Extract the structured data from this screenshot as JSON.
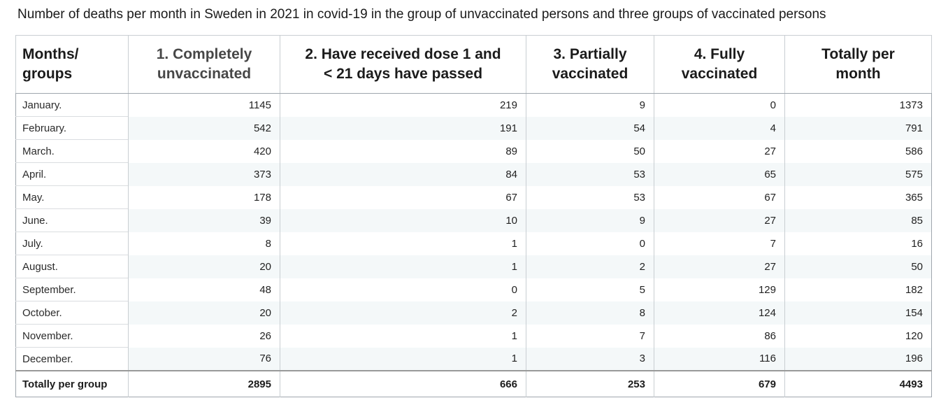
{
  "title": "Number of deaths per month in Sweden in 2021 in covid-19 in the group of unvaccinated persons and three groups of vaccinated persons",
  "colors": {
    "stripe": "#f4f8f9",
    "border_outer": "#9fa6ad",
    "border_inner": "#c9ced2",
    "border_row": "#dadde0",
    "border_totals": "#999999",
    "text": "#222222",
    "header_text": "#1b1b1b",
    "header_unvaccinated_text": "#474747"
  },
  "table": {
    "header": {
      "cols": [
        "Months/\ngroups",
        "1. Completely\nunvaccinated",
        "2. Have received dose 1 and\n< 21 days have passed",
        "3. Partially\nvaccinated",
        "4. Fully\nvaccinated",
        "Totally per\nmonth"
      ]
    },
    "rows": [
      {
        "label": "January.",
        "values": [
          "1145",
          "219",
          "9",
          "0",
          "1373"
        ]
      },
      {
        "label": "February.",
        "values": [
          "542",
          "191",
          "54",
          "4",
          "791"
        ]
      },
      {
        "label": "March.",
        "values": [
          "420",
          "89",
          "50",
          "27",
          "586"
        ]
      },
      {
        "label": "April.",
        "values": [
          "373",
          "84",
          "53",
          "65",
          "575"
        ]
      },
      {
        "label": "May.",
        "values": [
          "178",
          "67",
          "53",
          "67",
          "365"
        ]
      },
      {
        "label": "June.",
        "values": [
          "39",
          "10",
          "9",
          "27",
          "85"
        ]
      },
      {
        "label": "July.",
        "values": [
          "8",
          "1",
          "0",
          "7",
          "16"
        ]
      },
      {
        "label": "August.",
        "values": [
          "20",
          "1",
          "2",
          "27",
          "50"
        ]
      },
      {
        "label": "September.",
        "values": [
          "48",
          "0",
          "5",
          "129",
          "182"
        ]
      },
      {
        "label": "October.",
        "values": [
          "20",
          "2",
          "8",
          "124",
          "154"
        ]
      },
      {
        "label": "November.",
        "values": [
          "26",
          "1",
          "7",
          "86",
          "120"
        ]
      },
      {
        "label": "December.",
        "values": [
          "76",
          "1",
          "3",
          "116",
          "196"
        ]
      }
    ],
    "totals": {
      "label": "Totally per group",
      "values": [
        "2895",
        "666",
        "253",
        "679",
        "4493"
      ]
    }
  },
  "chart_data": {
    "type": "table",
    "title": "Number of deaths per month in Sweden in 2021 in covid-19 in the group of unvaccinated persons and three groups of vaccinated persons",
    "categories": [
      "January.",
      "February.",
      "March.",
      "April.",
      "May.",
      "June.",
      "July.",
      "August.",
      "September.",
      "October.",
      "November.",
      "December."
    ],
    "series": [
      {
        "name": "1. Completely unvaccinated",
        "values": [
          1145,
          542,
          420,
          373,
          178,
          39,
          8,
          20,
          48,
          20,
          26,
          76
        ],
        "total": 2895
      },
      {
        "name": "2. Have received dose 1 and < 21 days have passed",
        "values": [
          219,
          191,
          89,
          84,
          67,
          10,
          1,
          1,
          0,
          2,
          1,
          1
        ],
        "total": 666
      },
      {
        "name": "3. Partially vaccinated",
        "values": [
          9,
          54,
          50,
          53,
          53,
          9,
          0,
          2,
          5,
          8,
          7,
          3
        ],
        "total": 253
      },
      {
        "name": "4. Fully vaccinated",
        "values": [
          0,
          4,
          27,
          65,
          67,
          27,
          7,
          27,
          129,
          124,
          86,
          116
        ],
        "total": 679
      }
    ],
    "row_totals_label": "Totally per month",
    "row_totals": [
      1373,
      791,
      586,
      575,
      365,
      85,
      16,
      50,
      182,
      154,
      120,
      196
    ],
    "column_totals_label": "Totally per group",
    "grand_total": 4493,
    "layout": {
      "striped_rows": true,
      "first_column_header": "Months/groups"
    }
  }
}
